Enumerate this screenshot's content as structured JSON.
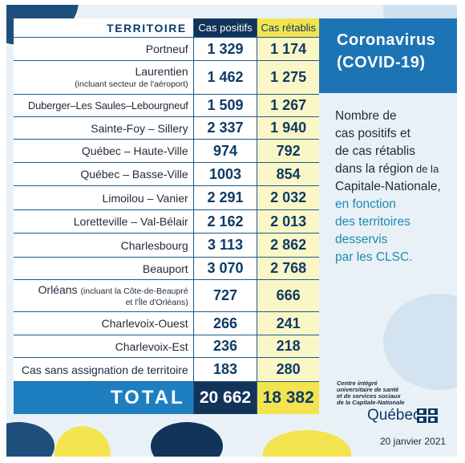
{
  "header": {
    "territoire": "TERRITOIRE",
    "positifs": "Cas positifs",
    "retablis": "Cas rétablis"
  },
  "rows": [
    {
      "name": "Portneuf",
      "pos": "1 329",
      "ret": "1 174"
    },
    {
      "name": "Laurentien",
      "sub": "(incluant secteur de l'aéroport)",
      "pos": "1 462",
      "ret": "1 275"
    },
    {
      "name": "Duberger–Les Saules–Lebourgneuf",
      "pos": "1 509",
      "ret": "1 267"
    },
    {
      "name": "Sainte-Foy – Sillery",
      "pos": "2 337",
      "ret": "1 940"
    },
    {
      "name": "Québec – Haute-Ville",
      "pos": "974",
      "ret": "792"
    },
    {
      "name": "Québec – Basse-Ville",
      "pos": "1003",
      "ret": "854"
    },
    {
      "name": "Limoilou – Vanier",
      "pos": "2 291",
      "ret": "2 032"
    },
    {
      "name": "Loretteville – Val-Bélair",
      "pos": "2 162",
      "ret": "2 013"
    },
    {
      "name": "Charlesbourg",
      "pos": "3 113",
      "ret": "2 862"
    },
    {
      "name": "Beauport",
      "pos": "3 070",
      "ret": "2 768"
    },
    {
      "name": "Orléans",
      "sub": "(incluant la Côte-de-Beaupré",
      "sub2": "et l'Île d'Orléans)",
      "pos": "727",
      "ret": "666"
    },
    {
      "name": "Charlevoix-Ouest",
      "pos": "266",
      "ret": "241"
    },
    {
      "name": "Charlevoix-Est",
      "pos": "236",
      "ret": "218"
    },
    {
      "name": "Cas sans assignation de territoire",
      "pos": "183",
      "ret": "280"
    }
  ],
  "total": {
    "label": "TOTAL",
    "pos": "20 662",
    "ret": "18 382"
  },
  "title": {
    "line1": "Coronavirus",
    "line2": "(COVID-19)"
  },
  "description": {
    "l1": "Nombre de",
    "l2": "cas positifs et",
    "l3": "de cas rétablis",
    "l4a": "dans la région",
    "l4b": " de la",
    "l5": "Capitale-Nationale,",
    "l6": "en fonction",
    "l7": "des territoires",
    "l8": "desservis",
    "l9": "par les CLSC."
  },
  "logo": {
    "l1": "Centre intégré",
    "l2": "universitaire de santé",
    "l3": "et de services sociaux",
    "l4": "de la Capitale-Nationale",
    "quebec": "Québec"
  },
  "date": "20 janvier 2021",
  "colors": {
    "navy": "#12335a",
    "blue": "#1e7fc0",
    "yellow": "#f3e44f",
    "pale_yellow": "#fbf6c5",
    "background": "#e9f1f7"
  }
}
